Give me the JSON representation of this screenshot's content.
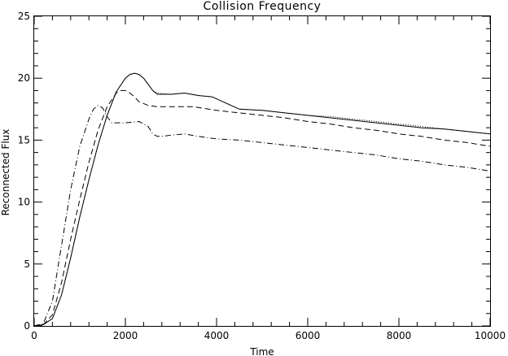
{
  "chart_data": {
    "type": "line",
    "title": "Collision Frequency",
    "xlabel": "Time",
    "ylabel": "Reconnected Flux",
    "xlim": [
      0,
      10000
    ],
    "ylim": [
      0,
      25
    ],
    "xticks": [
      "0",
      "2000",
      "4000",
      "6000",
      "8000",
      "10000"
    ],
    "yticks": [
      "0",
      "5",
      "10",
      "15",
      "20",
      "25"
    ],
    "grid": false,
    "legend": "none",
    "series": [
      {
        "style": "solid",
        "x": [
          0,
          200,
          400,
          600,
          800,
          1000,
          1200,
          1400,
          1600,
          1800,
          2000,
          2100,
          2200,
          2300,
          2400,
          2500,
          2600,
          2700,
          3000,
          3300,
          3600,
          3900,
          4200,
          4500,
          5000,
          5500,
          6000,
          6500,
          7000,
          7500,
          8000,
          8500,
          9000,
          9500,
          10000
        ],
        "y": [
          0,
          0.1,
          0.6,
          2.5,
          5.5,
          8.8,
          11.8,
          14.6,
          17.0,
          18.9,
          20.0,
          20.3,
          20.4,
          20.3,
          20.0,
          19.5,
          19.0,
          18.7,
          18.7,
          18.8,
          18.6,
          18.5,
          18.0,
          17.5,
          17.4,
          17.2,
          17.0,
          16.8,
          16.6,
          16.4,
          16.2,
          16.0,
          15.9,
          15.7,
          15.5
        ]
      },
      {
        "style": "dotted",
        "x": [
          0,
          200,
          400,
          600,
          800,
          1000,
          1200,
          1400,
          1600,
          1800,
          2000,
          2100,
          2200,
          2300,
          2400,
          2500,
          2600,
          2700,
          3000,
          3300,
          3600,
          3900,
          4200,
          4500,
          5000,
          5500,
          6000,
          6500,
          7000,
          7500,
          8000,
          8500,
          9000,
          9500,
          10000
        ],
        "y": [
          0,
          0.1,
          0.6,
          2.5,
          5.5,
          8.8,
          11.8,
          14.6,
          17.0,
          18.9,
          20.0,
          20.3,
          20.4,
          20.3,
          20.0,
          19.5,
          19.0,
          18.8,
          18.7,
          18.8,
          18.6,
          18.5,
          18.0,
          17.5,
          17.4,
          17.2,
          17.0,
          16.9,
          16.7,
          16.5,
          16.3,
          16.1,
          15.9,
          15.7,
          15.5
        ]
      },
      {
        "style": "dashed",
        "x": [
          0,
          200,
          400,
          600,
          800,
          1000,
          1200,
          1400,
          1600,
          1800,
          1900,
          2000,
          2100,
          2200,
          2300,
          2500,
          2700,
          3000,
          3500,
          4000,
          4500,
          5000,
          5500,
          6000,
          6500,
          7000,
          7500,
          8000,
          8500,
          9000,
          9500,
          10000
        ],
        "y": [
          0,
          0.1,
          0.9,
          3.5,
          7.0,
          10.2,
          13.2,
          15.8,
          17.7,
          18.8,
          19.0,
          19.0,
          18.8,
          18.5,
          18.1,
          17.8,
          17.7,
          17.7,
          17.7,
          17.4,
          17.2,
          17.0,
          16.8,
          16.5,
          16.3,
          16.0,
          15.8,
          15.5,
          15.3,
          15.0,
          14.8,
          14.5
        ]
      },
      {
        "style": "dashdot",
        "x": [
          0,
          200,
          400,
          600,
          800,
          1000,
          1200,
          1300,
          1400,
          1500,
          1600,
          1700,
          2000,
          2300,
          2500,
          2600,
          2700,
          2800,
          3000,
          3300,
          3600,
          4000,
          4500,
          5000,
          5500,
          6000,
          6500,
          7000,
          7500,
          8000,
          8500,
          9000,
          9500,
          10000
        ],
        "y": [
          0,
          0.2,
          2.0,
          6.5,
          11.0,
          14.5,
          16.7,
          17.5,
          17.8,
          17.6,
          16.9,
          16.4,
          16.4,
          16.5,
          16.1,
          15.5,
          15.3,
          15.3,
          15.4,
          15.5,
          15.3,
          15.1,
          15.0,
          14.8,
          14.6,
          14.4,
          14.2,
          14.0,
          13.8,
          13.5,
          13.3,
          13.0,
          12.8,
          12.5
        ]
      }
    ]
  }
}
